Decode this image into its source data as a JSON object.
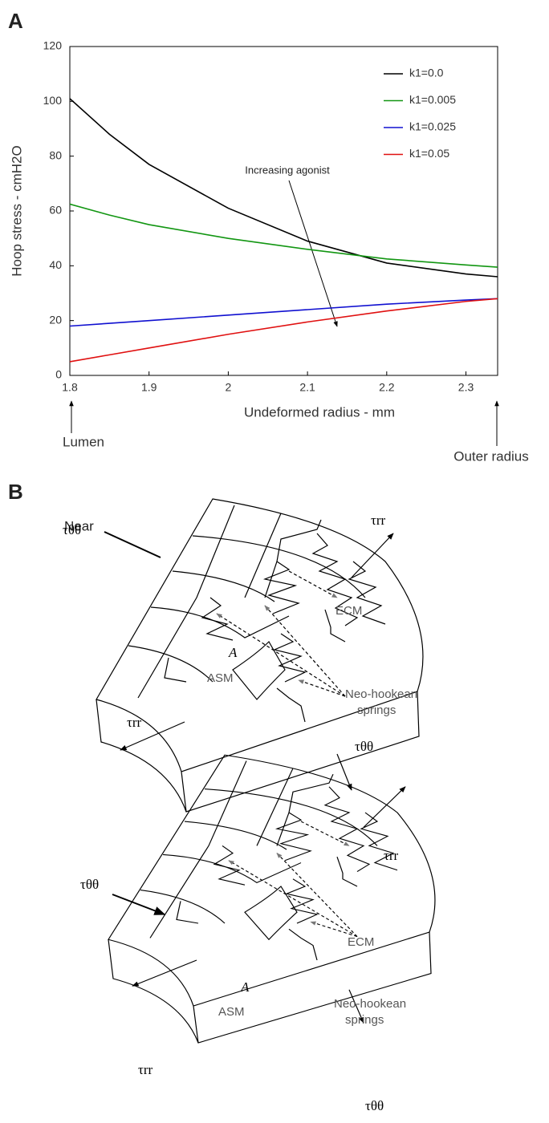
{
  "chart_data": {
    "type": "line",
    "x": [
      1.8,
      1.85,
      1.9,
      2.0,
      2.1,
      2.2,
      2.3,
      2.34
    ],
    "series": [
      {
        "name": "k1=0.0",
        "color": "#000000",
        "values": [
          101,
          88,
          77,
          61,
          49,
          41,
          37,
          36
        ]
      },
      {
        "name": "k1=0.005",
        "color": "#129612",
        "values": [
          62.5,
          58.5,
          55,
          50,
          46,
          42.5,
          40.3,
          39.5
        ]
      },
      {
        "name": "k1=0.025",
        "color": "#1010d0",
        "values": [
          18,
          19,
          20,
          22,
          24,
          26,
          27.5,
          28
        ]
      },
      {
        "name": "k1=0.05",
        "color": "#e01010",
        "values": [
          5,
          7.5,
          10,
          15,
          19.5,
          23.5,
          27,
          28
        ]
      }
    ],
    "xlabel": "Undeformed radius - mm",
    "ylabel": "Hoop stress - cmH2O",
    "xlim": [
      1.8,
      2.34
    ],
    "xticks": [
      1.8,
      1.9,
      2,
      2.1,
      2.2,
      2.3
    ],
    "ylim": [
      0,
      120
    ],
    "yticks": [
      0,
      20,
      40,
      60,
      80,
      100,
      120
    ],
    "legend": "upper right",
    "annotations": [
      "Increasing agonist",
      "Lumen",
      "Outer radius"
    ]
  },
  "panel_labels": [
    "A",
    "B"
  ],
  "diagrams": [
    {
      "side": "Near",
      "tau_left": "τθθ",
      "tau_top": "τrr",
      "ecm": "ECM",
      "springs_1": "Neo-hookean",
      "springs_2": "springs",
      "a": "A",
      "asm": "ASM",
      "tau_bl": "τrr",
      "tau_bottom": "τθθ"
    },
    {
      "tau_left": "τθθ",
      "tau_top": "τrr",
      "ecm": "ECM",
      "springs_1": "Neo-hookean",
      "springs_2": "springs",
      "a": "A",
      "asm": "ASM",
      "tau_bl": "τrr",
      "tau_bottom": "τθθ"
    }
  ]
}
